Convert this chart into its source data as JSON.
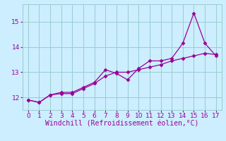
{
  "line1_x": [
    0,
    1,
    2,
    3,
    4,
    5,
    6,
    7,
    8,
    9,
    10,
    11,
    12,
    13,
    14,
    15,
    16,
    17
  ],
  "line1_y": [
    11.9,
    11.8,
    12.1,
    12.2,
    12.2,
    12.4,
    12.6,
    13.1,
    12.95,
    12.7,
    13.15,
    13.45,
    13.45,
    13.55,
    14.15,
    15.35,
    14.15,
    13.65
  ],
  "line2_x": [
    0,
    1,
    2,
    3,
    4,
    5,
    6,
    7,
    8,
    9,
    10,
    11,
    12,
    13,
    14,
    15,
    16,
    17
  ],
  "line2_y": [
    11.9,
    11.8,
    12.1,
    12.15,
    12.15,
    12.35,
    12.55,
    12.85,
    13.0,
    13.0,
    13.1,
    13.2,
    13.3,
    13.45,
    13.55,
    13.65,
    13.75,
    13.7
  ],
  "line_color": "#990099",
  "background_color": "#cceeff",
  "grid_color": "#99cccc",
  "xlabel": "Windchill (Refroidissement éolien,°C)",
  "xlim": [
    -0.5,
    17.5
  ],
  "ylim": [
    11.5,
    15.7
  ],
  "xticks": [
    0,
    1,
    2,
    3,
    4,
    5,
    6,
    7,
    8,
    9,
    10,
    11,
    12,
    13,
    14,
    15,
    16,
    17
  ],
  "yticks": [
    12,
    13,
    14,
    15
  ],
  "marker": "D",
  "markersize": 2.5,
  "linewidth": 0.9,
  "xlabel_fontsize": 7,
  "tick_fontsize": 6.5,
  "label_color": "#990099"
}
